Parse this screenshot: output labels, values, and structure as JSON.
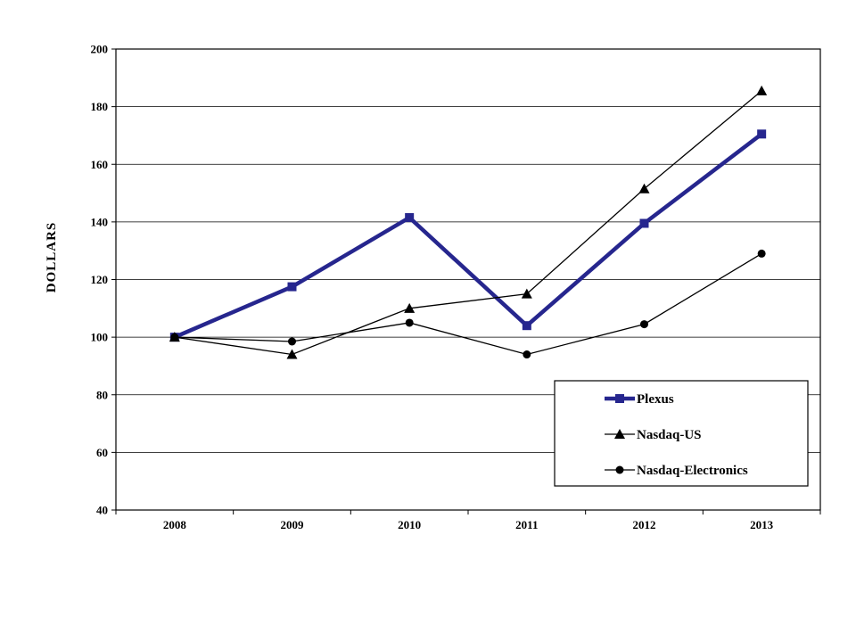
{
  "page": {
    "background": "#FFFFFF"
  },
  "chart_data": {
    "type": "line",
    "title": "",
    "xlabel": "",
    "ylabel": "DOLLARS",
    "categories": [
      "2008",
      "2009",
      "2010",
      "2011",
      "2012",
      "2013"
    ],
    "ylim": [
      40,
      200
    ],
    "ytick_step": 20,
    "ytick_labels": [
      "40",
      "60",
      "80",
      "100",
      "120",
      "140",
      "160",
      "180",
      "200"
    ],
    "grid": "horizontal",
    "legend_position": "inside-bottom-right",
    "axis_color": "#000000",
    "series": [
      {
        "name": "Plexus",
        "marker": "square",
        "color": "#26268E",
        "line_width": 4.5,
        "values": [
          100,
          117.5,
          141.5,
          104,
          139.5,
          170.5
        ]
      },
      {
        "name": "Nasdaq-US",
        "marker": "triangle",
        "color": "#000000",
        "line_width": 1.3,
        "values": [
          100,
          94,
          110,
          115,
          151.5,
          185.5
        ]
      },
      {
        "name": "Nasdaq-Electronics",
        "marker": "circle",
        "color": "#000000",
        "line_width": 1.3,
        "values": [
          100,
          98.5,
          105,
          94,
          104.5,
          129
        ]
      }
    ]
  }
}
